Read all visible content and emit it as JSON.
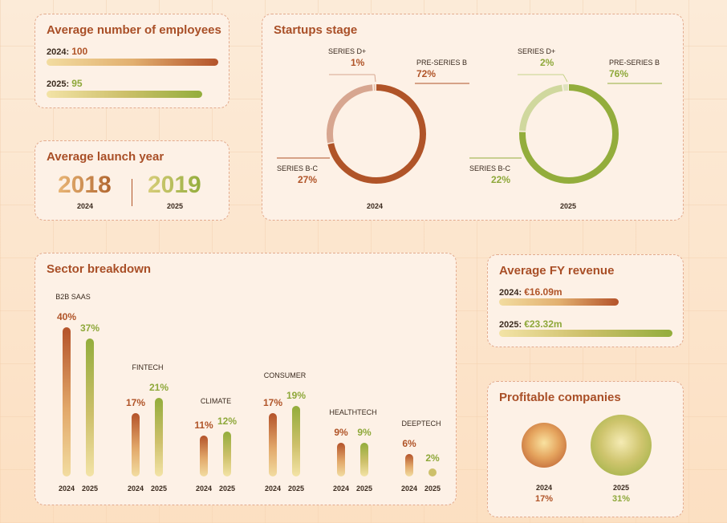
{
  "colors": {
    "c2024": "#b05428",
    "c2025": "#8ea83a",
    "border": "#e3ab8e"
  },
  "employees": {
    "title": "Average number of employees",
    "rows": [
      {
        "key": "2024:",
        "value": "100",
        "num": 100
      },
      {
        "key": "2025:",
        "value": "95",
        "num": 95
      }
    ]
  },
  "launch": {
    "title": "Average launch year",
    "y2024": {
      "value": "2018",
      "label": "2024"
    },
    "y2025": {
      "value": "2019",
      "label": "2025"
    }
  },
  "stage": {
    "title": "Startups stage",
    "donuts": [
      {
        "year": "2024",
        "slices": [
          {
            "name": "PRE-SERIES B",
            "pct": "72%",
            "value": 72
          },
          {
            "name": "SERIES B-C",
            "pct": "27%",
            "value": 27
          },
          {
            "name": "SERIES D+",
            "pct": "1%",
            "value": 1
          }
        ]
      },
      {
        "year": "2025",
        "slices": [
          {
            "name": "PRE-SERIES B",
            "pct": "76%",
            "value": 76
          },
          {
            "name": "SERIES B-C",
            "pct": "22%",
            "value": 22
          },
          {
            "name": "SERIES D+",
            "pct": "2%",
            "value": 2
          }
        ]
      }
    ]
  },
  "sector": {
    "title": "Sector breakdown",
    "groups": [
      {
        "name": "B2B SAAS",
        "v2024": "40%",
        "v2025": "37%"
      },
      {
        "name": "FINTECH",
        "v2024": "17%",
        "v2025": "21%"
      },
      {
        "name": "CLIMATE",
        "v2024": "11%",
        "v2025": "12%"
      },
      {
        "name": "CONSUMER",
        "v2024": "17%",
        "v2025": "19%"
      },
      {
        "name": "HEALTHTECH",
        "v2024": "9%",
        "v2025": "9%"
      },
      {
        "name": "DEEPTECH",
        "v2024": "6%",
        "v2025": "2%"
      }
    ],
    "x2024": "2024",
    "x2025": "2025"
  },
  "revenue": {
    "title": "Average FY revenue",
    "rows": [
      {
        "key": "2024:",
        "value": "€16.09m",
        "num": 16.09
      },
      {
        "key": "2025:",
        "value": "€23.32m",
        "num": 23.32
      }
    ]
  },
  "profitable": {
    "title": "Profitable companies",
    "items": [
      {
        "year": "2024",
        "value": "17%",
        "num": 17
      },
      {
        "year": "2025",
        "value": "31%",
        "num": 31
      }
    ]
  },
  "chart_data": [
    {
      "type": "bar",
      "title": "Average number of employees",
      "categories": [
        "2024",
        "2025"
      ],
      "values": [
        100,
        95
      ]
    },
    {
      "type": "table",
      "title": "Average launch year",
      "columns": [
        "2024",
        "2025"
      ],
      "values": [
        2018,
        2019
      ]
    },
    {
      "type": "pie",
      "title": "Startups stage",
      "series": [
        {
          "name": "2024",
          "labels": [
            "PRE-SERIES B",
            "SERIES B-C",
            "SERIES D+"
          ],
          "values": [
            72,
            27,
            1
          ]
        },
        {
          "name": "2025",
          "labels": [
            "PRE-SERIES B",
            "SERIES B-C",
            "SERIES D+"
          ],
          "values": [
            76,
            22,
            2
          ]
        }
      ]
    },
    {
      "type": "bar",
      "title": "Sector breakdown",
      "categories": [
        "B2B SAAS",
        "FINTECH",
        "CLIMATE",
        "CONSUMER",
        "HEALTHTECH",
        "DEEPTECH"
      ],
      "series": [
        {
          "name": "2024",
          "values": [
            40,
            17,
            11,
            17,
            9,
            6
          ]
        },
        {
          "name": "2025",
          "values": [
            37,
            21,
            12,
            19,
            9,
            2
          ]
        }
      ]
    },
    {
      "type": "bar",
      "title": "Average FY revenue",
      "categories": [
        "2024",
        "2025"
      ],
      "values": [
        16.09,
        23.32
      ]
    },
    {
      "type": "bar",
      "title": "Profitable companies",
      "categories": [
        "2024",
        "2025"
      ],
      "values": [
        17,
        31
      ]
    }
  ]
}
